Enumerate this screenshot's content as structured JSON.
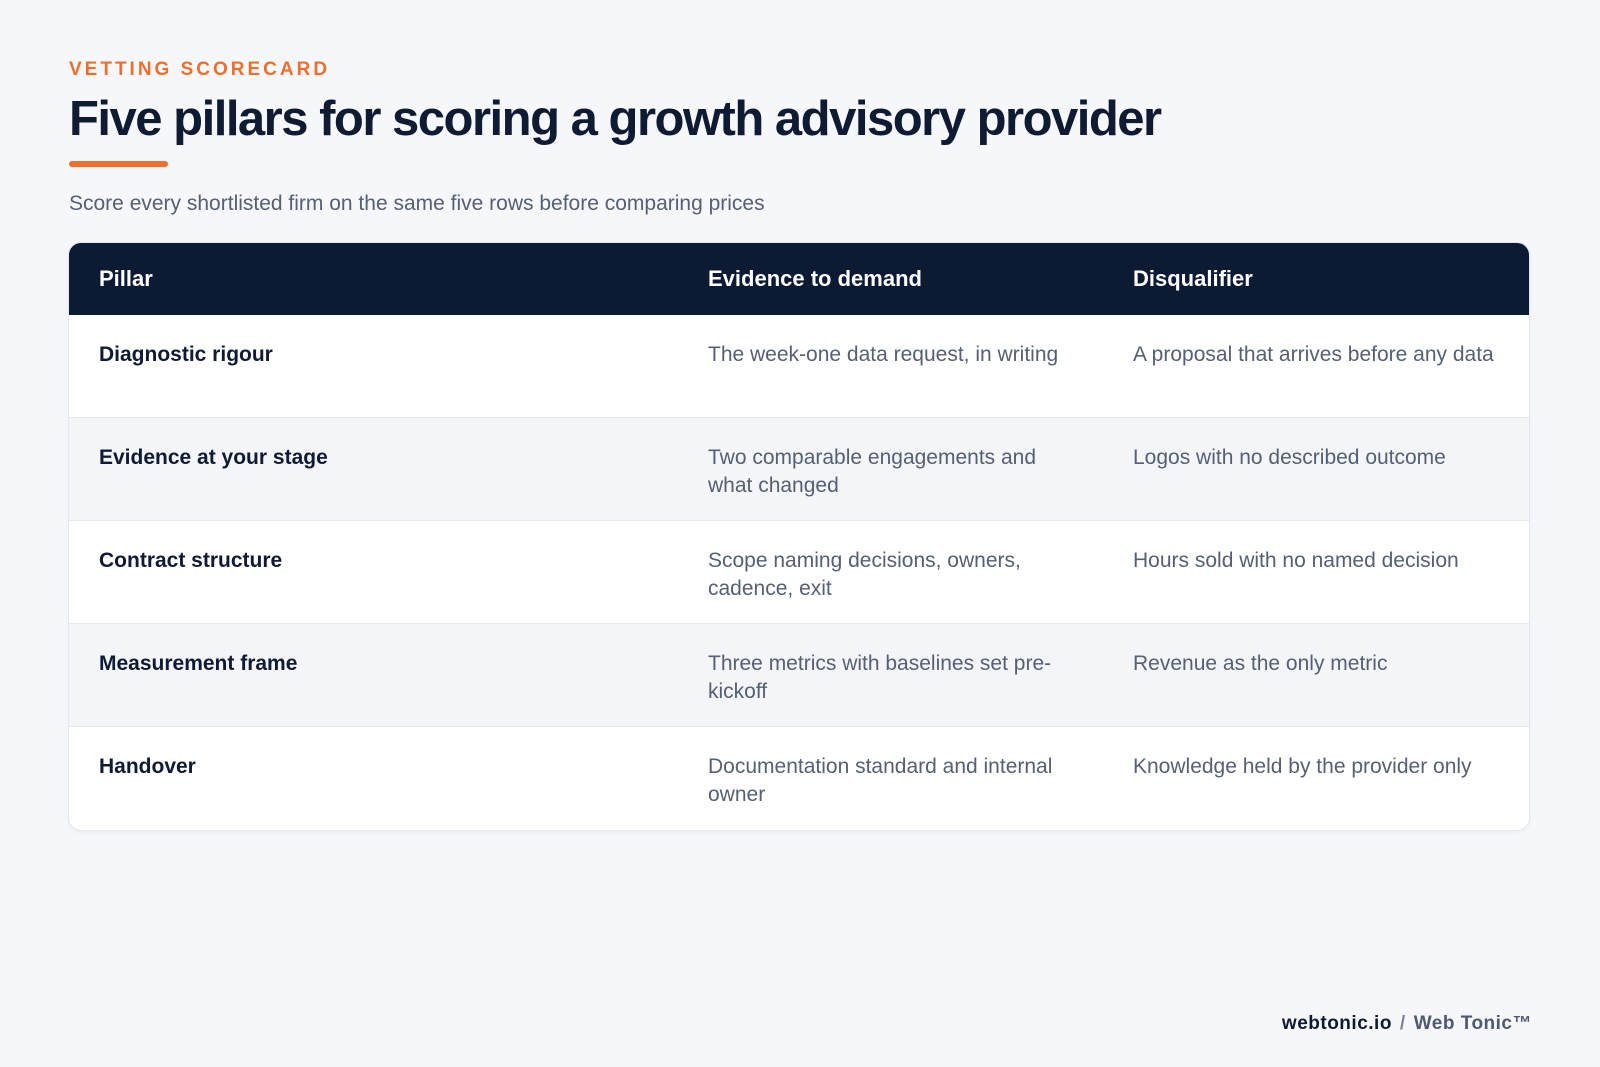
{
  "header": {
    "eyebrow": "VETTING SCORECARD",
    "title": "Five pillars for scoring a growth advisory provider",
    "subtitle": "Score every shortlisted firm on the same five rows before comparing prices"
  },
  "table": {
    "columns": [
      "Pillar",
      "Evidence to demand",
      "Disqualifier"
    ],
    "rows": [
      {
        "pillar": "Diagnostic rigour",
        "evidence": "The week-one data request, in writing",
        "disqualifier": "A proposal that arrives before any data"
      },
      {
        "pillar": "Evidence at your stage",
        "evidence": "Two comparable engagements and what changed",
        "disqualifier": "Logos with no described outcome"
      },
      {
        "pillar": "Contract structure",
        "evidence": "Scope naming decisions, owners, cadence, exit",
        "disqualifier": "Hours sold with no named decision"
      },
      {
        "pillar": "Measurement frame",
        "evidence": "Three metrics with baselines set pre-kickoff",
        "disqualifier": "Revenue as the only metric"
      },
      {
        "pillar": "Handover",
        "evidence": "Documentation standard and internal owner",
        "disqualifier": "Knowledge held by the provider only"
      }
    ]
  },
  "footer": {
    "domain": "webtonic.io",
    "separator": "/",
    "brand": "Web Tonic™"
  },
  "colors": {
    "accent": "#ee6f2d",
    "navy": "#0d1a33",
    "muted_text": "#556074",
    "background": "#f5f7fa"
  }
}
